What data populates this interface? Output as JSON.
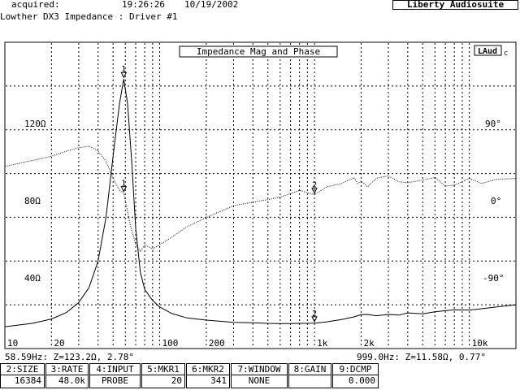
{
  "header": {
    "acquired_label": "acquired:",
    "time": "19:26:26",
    "date": "10/19/2002",
    "brand": "Liberty Audiosuite",
    "title": "Lowther DX3 Impedance : Driver #1"
  },
  "plot": {
    "title": "Impedance Mag and Phase",
    "logo": "LAud",
    "logo_suffix": "c",
    "left_axis_labels": [
      "120Ω",
      "80Ω",
      "40Ω"
    ],
    "right_axis_labels": [
      "90°",
      "0°",
      "-90°"
    ],
    "x_tick_labels": [
      "10",
      "20",
      "100",
      "200",
      "1k",
      "2k",
      "10k"
    ],
    "marker1_label": "1",
    "marker2_label": "2"
  },
  "readouts": {
    "marker1": "58.59Hz: Z=123.2Ω, 2.78°",
    "marker2": "999.0Hz: Z=11.58Ω, 0.77°"
  },
  "fkeys": [
    {
      "label": "2:SIZE",
      "value": "16384"
    },
    {
      "label": "3:RATE",
      "value": "48.0k"
    },
    {
      "label": "4:INPUT",
      "value": "PROBE"
    },
    {
      "label": "5:MKR1",
      "value": "20"
    },
    {
      "label": "6:MKR2",
      "value": "341"
    },
    {
      "label": "7:WINDOW",
      "value": "NONE"
    },
    {
      "label": "8:GAIN",
      "value": ""
    },
    {
      "label": "9:DCMP",
      "value": "0.000"
    }
  ],
  "chart_data": {
    "type": "line",
    "title": "Impedance Mag and Phase",
    "x_scale": "log",
    "xlim": [
      10,
      20000
    ],
    "ylim_left": [
      0,
      140
    ],
    "ylim_right": [
      -180,
      180
    ],
    "series": [
      {
        "axis": "left",
        "x": [
          10,
          15,
          20,
          25,
          30,
          35,
          40,
          45,
          50,
          55,
          58.59,
          62,
          66,
          70,
          75,
          80,
          90,
          100,
          120,
          150,
          200,
          300,
          400,
          500,
          600,
          700,
          800,
          999,
          1200,
          1500,
          1800,
          2000,
          2200,
          2500,
          3000,
          3500,
          4000,
          5000,
          6000,
          7000,
          8000,
          10000,
          12000,
          15000,
          20000
        ],
        "y": [
          10,
          11.5,
          13.5,
          16.5,
          21,
          28,
          40,
          60,
          88,
          112,
          123.2,
          112,
          85,
          55,
          35,
          27,
          22,
          19,
          16,
          14,
          13,
          12,
          11.8,
          11.5,
          11.4,
          11.4,
          11.5,
          11.58,
          12.2,
          13.3,
          14.5,
          15.5,
          15.6,
          15,
          15.6,
          15.3,
          16.3,
          15.9,
          16.8,
          17.3,
          17.7,
          17.6,
          18.2,
          19,
          20
        ]
      },
      {
        "axis": "right",
        "x": [
          10,
          15,
          20,
          25,
          30,
          35,
          40,
          45,
          50,
          55,
          58.59,
          65,
          70,
          75,
          80,
          90,
          100,
          120,
          150,
          200,
          300,
          400,
          500,
          600,
          700,
          800,
          999,
          1200,
          1500,
          1800,
          1900,
          2000,
          2200,
          2500,
          3000,
          3500,
          4000,
          5000,
          6000,
          7000,
          8000,
          10000,
          12000,
          15000,
          20000
        ],
        "y": [
          34,
          41,
          46,
          52,
          56,
          58,
          52,
          40,
          20,
          6,
          2.78,
          -37,
          -57,
          -66,
          -58,
          -63,
          -58,
          -49,
          -37,
          -26,
          -12,
          -8,
          -5,
          -2,
          2,
          6,
          0.77,
          10,
          14,
          21,
          14,
          17,
          10,
          20,
          23,
          16,
          15,
          18,
          21,
          11,
          12,
          20,
          14,
          19,
          20
        ]
      }
    ],
    "markers": [
      {
        "label": "1",
        "x": 58.59,
        "z": 123.2,
        "phase": 2.78
      },
      {
        "label": "2",
        "x": 999.0,
        "z": 11.58,
        "phase": 0.77
      }
    ]
  }
}
